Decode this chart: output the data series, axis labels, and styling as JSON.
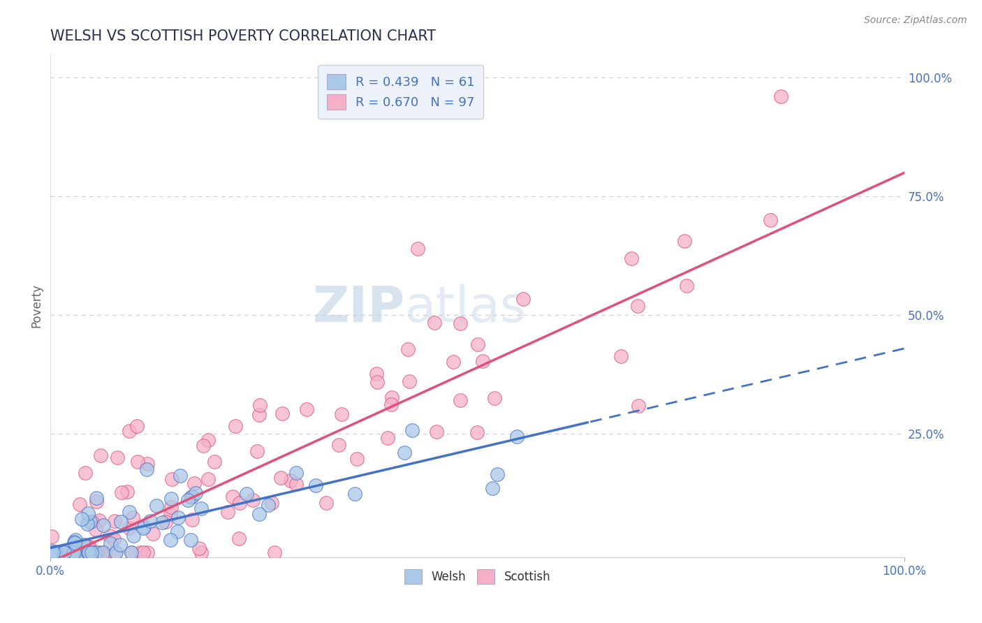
{
  "title": "WELSH VS SCOTTISH POVERTY CORRELATION CHART",
  "source": "Source: ZipAtlas.com",
  "ylabel": "Poverty",
  "xlabel": "",
  "xlim": [
    0.0,
    1.0
  ],
  "ylim": [
    -0.01,
    1.05
  ],
  "welsh_r": 0.439,
  "welsh_n": 61,
  "scottish_r": 0.67,
  "scottish_n": 97,
  "welsh_color": "#aac8e8",
  "scottish_color": "#f5b0c8",
  "welsh_line_color": "#4472c4",
  "scottish_line_color": "#e0507a",
  "title_color": "#2a3050",
  "background_color": "#ffffff",
  "grid_color": "#ccccdd",
  "legend_box_color": "#edf2fa",
  "tick_label_color": "#4472c4",
  "ytick_labels": [
    "25.0%",
    "50.0%",
    "75.0%",
    "100.0%"
  ],
  "ytick_values": [
    0.25,
    0.5,
    0.75,
    1.0
  ],
  "watermark_zip_color": "#c0d4ee",
  "watermark_atlas_color": "#c0d4ee",
  "welsh_line_intercept": 0.01,
  "welsh_line_slope": 0.42,
  "scottish_line_intercept": -0.02,
  "scottish_line_slope": 0.82
}
